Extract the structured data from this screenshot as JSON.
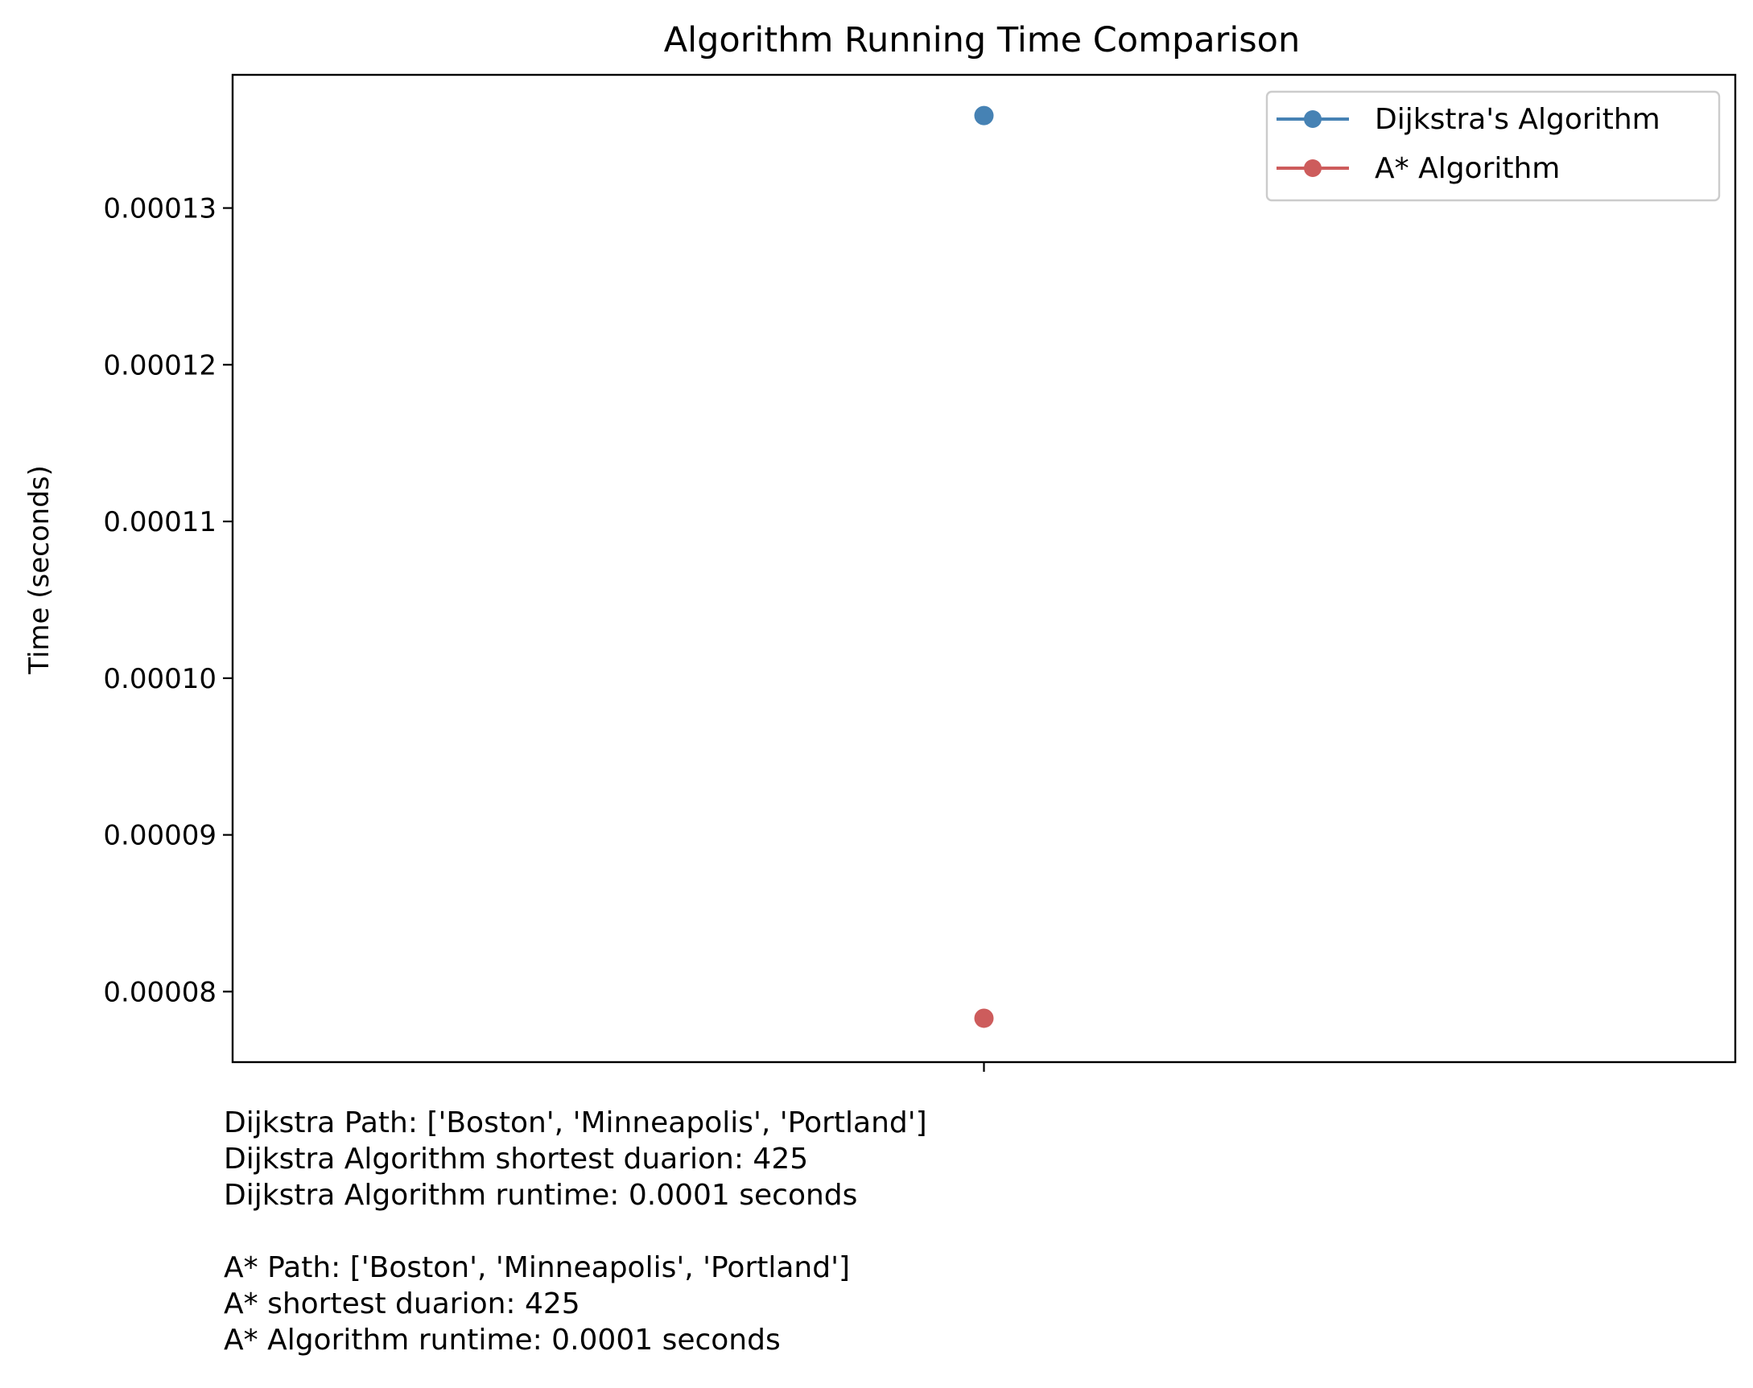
{
  "chart_data": {
    "type": "scatter",
    "title": "Algorithm Running Time Comparison",
    "xlabel": "",
    "ylabel": "Time (seconds)",
    "x_categories": [
      ""
    ],
    "ylim": [
      7.55e-05,
      0.0001385
    ],
    "y_ticks": [
      8e-05,
      9e-05,
      0.0001,
      0.00011,
      0.00012,
      0.00013
    ],
    "y_tick_labels": [
      "0.00008",
      "0.00009",
      "0.00010",
      "0.00011",
      "0.00012",
      "0.00013"
    ],
    "grid": false,
    "legend_position": "top-right",
    "series": [
      {
        "name": "Dijkstra's Algorithm",
        "color": "#4682b4",
        "values": [
          0.0001359
        ]
      },
      {
        "name": "A* Algorithm",
        "color": "#cd5c5c",
        "values": [
          7.83e-05
        ]
      }
    ]
  },
  "annotation_lines": [
    "Dijkstra Path: ['Boston', 'Minneapolis', 'Portland']",
    "Dijkstra Algorithm shortest duarion: 425",
    "Dijkstra Algorithm runtime: 0.0001 seconds",
    "",
    "A* Path: ['Boston', 'Minneapolis', 'Portland']",
    "A* shortest duarion: 425",
    "A* Algorithm runtime: 0.0001 seconds"
  ]
}
